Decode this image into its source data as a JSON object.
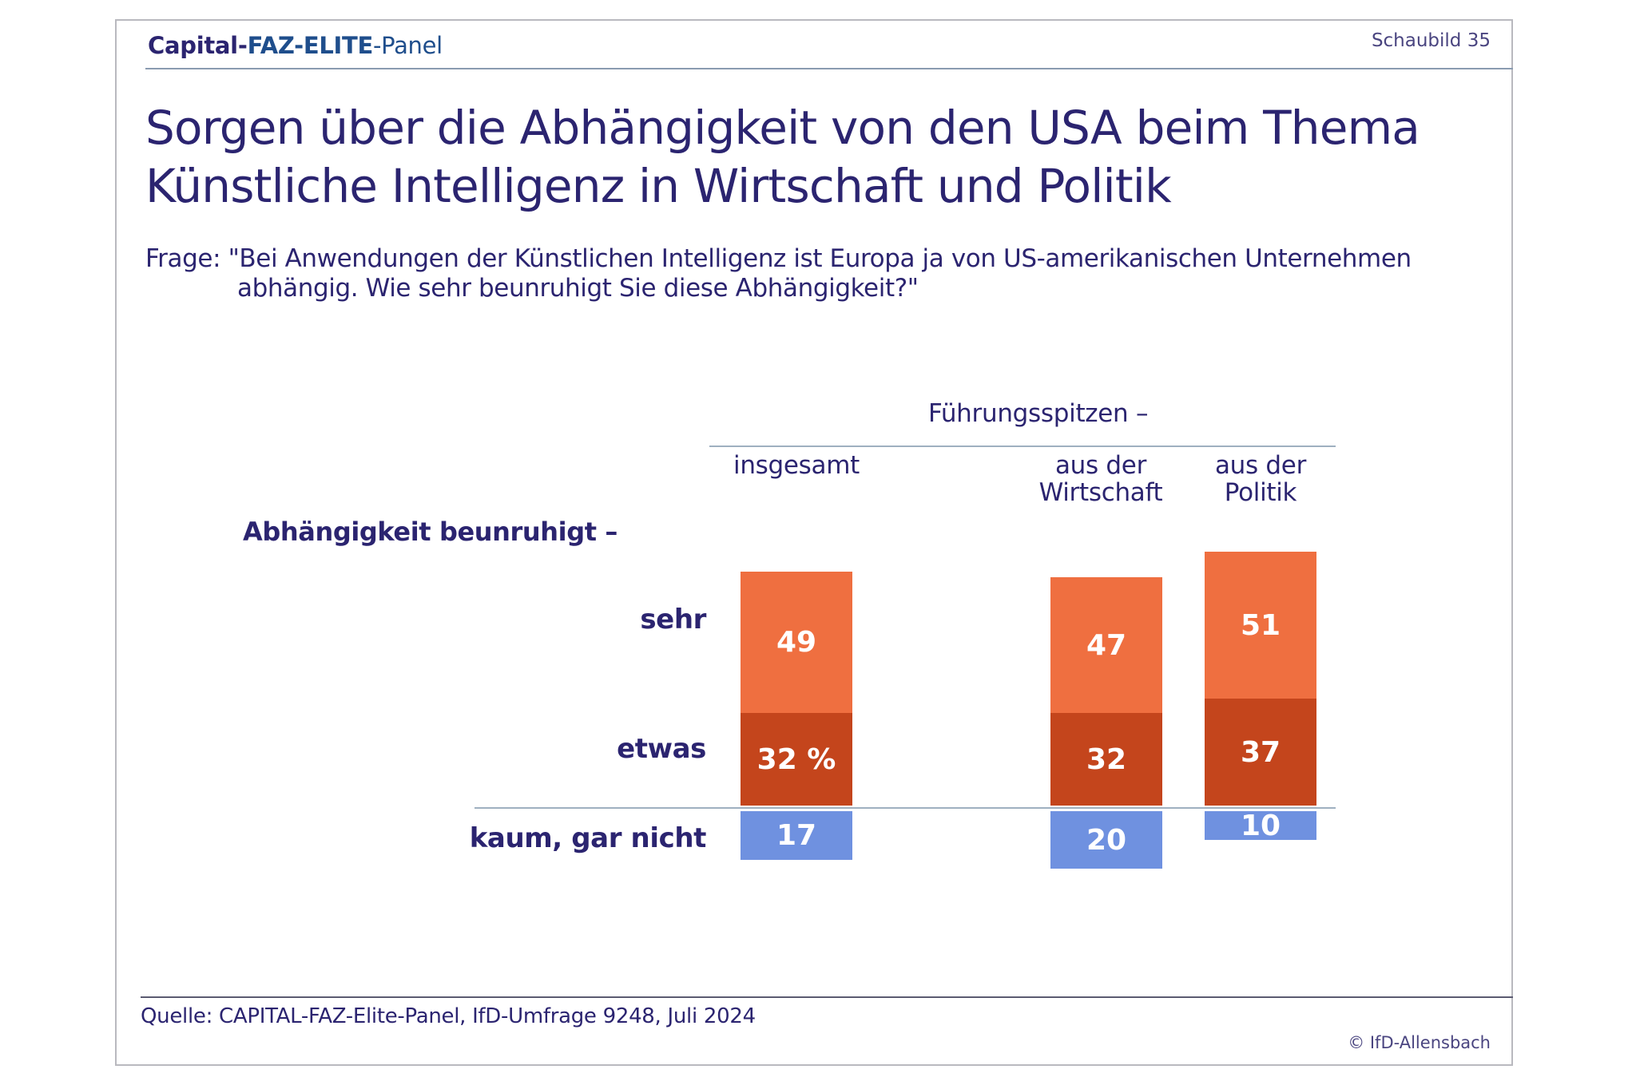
{
  "header": {
    "brand_part1": "Capital-",
    "brand_part2": "FAZ-ELITE",
    "brand_part3": "-Panel",
    "figure_label": "Schaubild 35"
  },
  "title": {
    "line1": "Sorgen über die Abhängigkeit von den USA beim Thema",
    "line2": "Künstliche Intelligenz in Wirtschaft und Politik"
  },
  "question": {
    "line1": "Frage: \"Bei Anwendungen der Künstlichen Intelligenz ist Europa ja von US-amerikanischen Unternehmen",
    "line2": "abhängig. Wie sehr beunruhigt Sie diese Abhängigkeit?\""
  },
  "footer": {
    "source": "Quelle: CAPITAL-FAZ-Elite-Panel, IfD-Umfrage 9248, Juli 2024",
    "copyright": "© IfD-Allensbach"
  },
  "chart_data": {
    "type": "bar",
    "stacked": true,
    "unit": "%",
    "row_header": "Abhängigkeit beunruhigt –",
    "group_header": "Führungsspitzen –",
    "categories": [
      "insgesamt",
      "aus der Wirtschaft",
      "aus der Politik"
    ],
    "category_labels": [
      [
        "insgesamt"
      ],
      [
        "aus der",
        "Wirtschaft"
      ],
      [
        "aus der",
        "Politik"
      ]
    ],
    "series": [
      {
        "name": "sehr",
        "values": [
          32,
          32,
          37
        ],
        "color": "#c4451c",
        "direction": "up",
        "labels": [
          "32 %",
          "32",
          "37"
        ]
      },
      {
        "name": "etwas",
        "values": [
          49,
          47,
          51
        ],
        "color": "#ef6f40",
        "direction": "up",
        "labels": [
          "49",
          "47",
          "51"
        ]
      },
      {
        "name": "kaum, gar nicht",
        "values": [
          17,
          20,
          10
        ],
        "color": "#6f91e0",
        "direction": "down",
        "labels": [
          "17",
          "20",
          "10"
        ]
      }
    ],
    "colors": {
      "text": "#2b2470",
      "rule": "#8a9bb0"
    }
  }
}
